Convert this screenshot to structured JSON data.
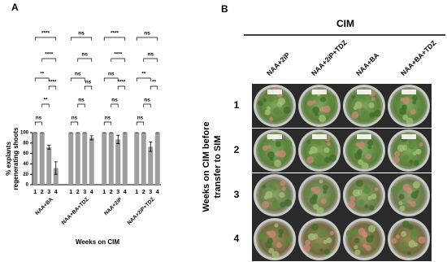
{
  "panel_labels": [
    "A",
    "B"
  ],
  "chart_data": {
    "type": "bar",
    "y_label_lines": [
      "% explants",
      "regenerating shoots"
    ],
    "x_label": "Weeks on CIM",
    "groups": [
      "NAA+BA",
      "NAA+BA+TDZ",
      "NAA+2iP",
      "NAA+2iP+TDZ"
    ],
    "weeks": [
      "1",
      "2",
      "3",
      "4"
    ],
    "series": [
      {
        "name": "NAA+BA",
        "color": "#9e9e9e",
        "values": [
          100,
          100,
          72,
          32
        ],
        "errors": [
          0,
          0,
          4,
          12
        ],
        "annotations": [
          "ns",
          "**",
          "****",
          "**",
          "****",
          "****"
        ]
      },
      {
        "name": "NAA+BA+TDZ",
        "color": "#9e9e9e",
        "values": [
          100,
          100,
          100,
          90
        ],
        "errors": [
          0,
          0,
          0,
          4
        ],
        "annotations": [
          "ns",
          "ns",
          "ns",
          "ns",
          "ns",
          "ns"
        ]
      },
      {
        "name": "NAA+2iP",
        "color": "#9e9e9e",
        "values": [
          100,
          100,
          87,
          100
        ],
        "errors": [
          0,
          0,
          8,
          0
        ],
        "annotations": [
          "ns",
          "ns",
          "****",
          "ns",
          "****",
          "****"
        ]
      },
      {
        "name": "NAA+2iP+TDZ",
        "color": "#9e9e9e",
        "values": [
          100,
          100,
          73,
          100
        ],
        "errors": [
          0,
          0,
          9,
          0
        ],
        "annotations": [
          "ns",
          "ns",
          "**",
          "**",
          "ns",
          "ns"
        ]
      }
    ],
    "ylim": [
      0,
      100
    ],
    "yticks": [
      0,
      20,
      40,
      60,
      80,
      100
    ]
  },
  "panel_b": {
    "title": "CIM",
    "columns": [
      "NAA+2iP",
      "NAA+2iP+TDZ",
      "NAA+BA",
      "NAA+BA+TDZ"
    ],
    "rows": [
      "1",
      "2",
      "3",
      "4"
    ],
    "y_label_lines": [
      "Weeks on CIM before",
      "transfer to SIM"
    ]
  }
}
